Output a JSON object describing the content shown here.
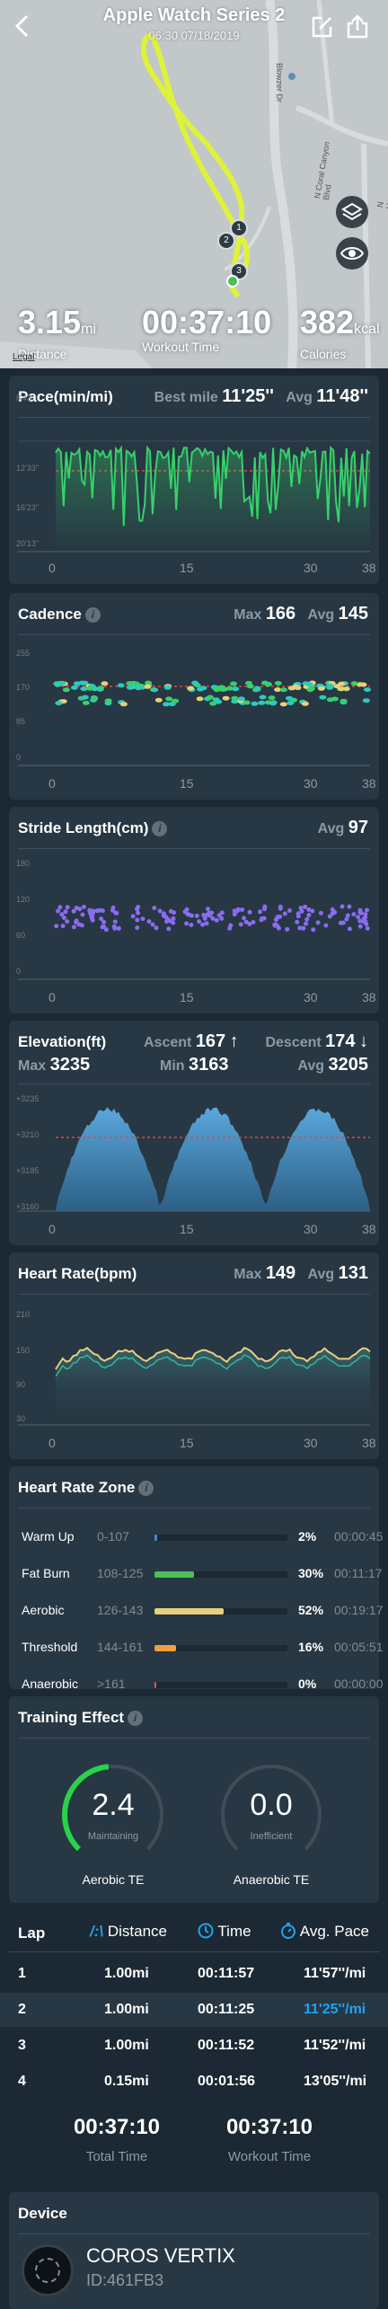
{
  "header": {
    "title": "Apple Watch Series 2",
    "datetime": "06:30 07/18/2019"
  },
  "map": {
    "street_1": "Blowzer Dr",
    "street_2": "N Coral Canyon Blvd",
    "street_3": "N Hm",
    "markers": [
      "1",
      "2",
      "3"
    ],
    "legal": "Legal"
  },
  "summary": {
    "distance_value": "3.15",
    "distance_unit": "mi",
    "distance_label": "Distance",
    "time_value": "00:37:10",
    "time_label": "Workout Time",
    "calories_value": "382",
    "calories_unit": "kcal",
    "calories_label": "Calories"
  },
  "x_ticks": [
    "0",
    "15",
    "30",
    "38"
  ],
  "pace": {
    "title": "Pace(min/mi)",
    "best_label": "Best mile",
    "best_value": "11'25''",
    "avg_label": "Avg",
    "avg_value": "11'48''",
    "y_labels": [
      "8'43''",
      "12'33''",
      "16'23''",
      "20'13''"
    ]
  },
  "cadence": {
    "title": "Cadence",
    "max_label": "Max",
    "max_value": "166",
    "avg_label": "Avg",
    "avg_value": "145",
    "y_labels": [
      "255",
      "170",
      "85",
      "0"
    ]
  },
  "stride": {
    "title": "Stride Length(cm)",
    "avg_label": "Avg",
    "avg_value": "97",
    "y_labels": [
      "180",
      "120",
      "60",
      "0"
    ]
  },
  "elevation": {
    "title": "Elevation(ft)",
    "ascent_label": "Ascent",
    "ascent_value": "167",
    "descent_label": "Descent",
    "descent_value": "174",
    "max_label": "Max",
    "max_value": "3235",
    "min_label": "Min",
    "min_value": "3163",
    "avg_label": "Avg",
    "avg_value": "3205",
    "y_labels": [
      "+3235",
      "+3210",
      "+3185",
      "+3160"
    ]
  },
  "heart": {
    "title": "Heart Rate(bpm)",
    "max_label": "Max",
    "max_value": "149",
    "avg_label": "Avg",
    "avg_value": "131",
    "y_labels": [
      "210",
      "150",
      "90",
      "30"
    ]
  },
  "zones": {
    "title": "Heart Rate Zone",
    "rows": [
      {
        "name": "Warm Up",
        "range": "0-107",
        "percent": "2%",
        "pct": 2,
        "time": "00:00:45",
        "color": "#3d8fd6"
      },
      {
        "name": "Fat Burn",
        "range": "108-125",
        "percent": "30%",
        "pct": 30,
        "time": "00:11:17",
        "color": "#4cbf55"
      },
      {
        "name": "Aerobic",
        "range": "126-143",
        "percent": "52%",
        "pct": 52,
        "time": "00:19:17",
        "color": "#e6d07a"
      },
      {
        "name": "Threshold",
        "range": "144-161",
        "percent": "16%",
        "pct": 16,
        "time": "00:05:51",
        "color": "#f0a040"
      },
      {
        "name": "Anaerobic",
        "range": ">161",
        "percent": "0%",
        "pct": 0,
        "time": "00:00:00",
        "color": "#e05050"
      }
    ]
  },
  "training": {
    "title": "Training Effect",
    "aerobic_value": "2.4",
    "aerobic_status": "Maintaining",
    "aerobic_label": "Aerobic TE",
    "anaerobic_value": "0.0",
    "anaerobic_status": "Inefficient",
    "anaerobic_label": "Anaerobic TE"
  },
  "laps": {
    "lap_label": "Lap",
    "distance_label": "Distance",
    "time_label": "Time",
    "pace_label": "Avg. Pace",
    "rows": [
      {
        "lap": "1",
        "distance": "1.00mi",
        "time": "00:11:57",
        "pace": "11'57''/mi"
      },
      {
        "lap": "2",
        "distance": "1.00mi",
        "time": "00:11:25",
        "pace": "11'25''/mi"
      },
      {
        "lap": "3",
        "distance": "1.00mi",
        "time": "00:11:52",
        "pace": "11'52''/mi"
      },
      {
        "lap": "4",
        "distance": "0.15mi",
        "time": "00:01:56",
        "pace": "13'05''/mi"
      }
    ],
    "total_time_value": "00:37:10",
    "total_time_label": "Total Time",
    "workout_time_value": "00:37:10",
    "workout_time_label": "Workout Time"
  },
  "device": {
    "title": "Device",
    "name": "COROS VERTIX",
    "id": "ID:461FB3"
  },
  "colors": {
    "accent": "#1fa3f0",
    "route": "#dff23a",
    "pace_line": "#36d16a",
    "elevation_fill": "#4f9ed3",
    "stride_dot": "#8a6cf0",
    "avg_line": "#e04545"
  }
}
